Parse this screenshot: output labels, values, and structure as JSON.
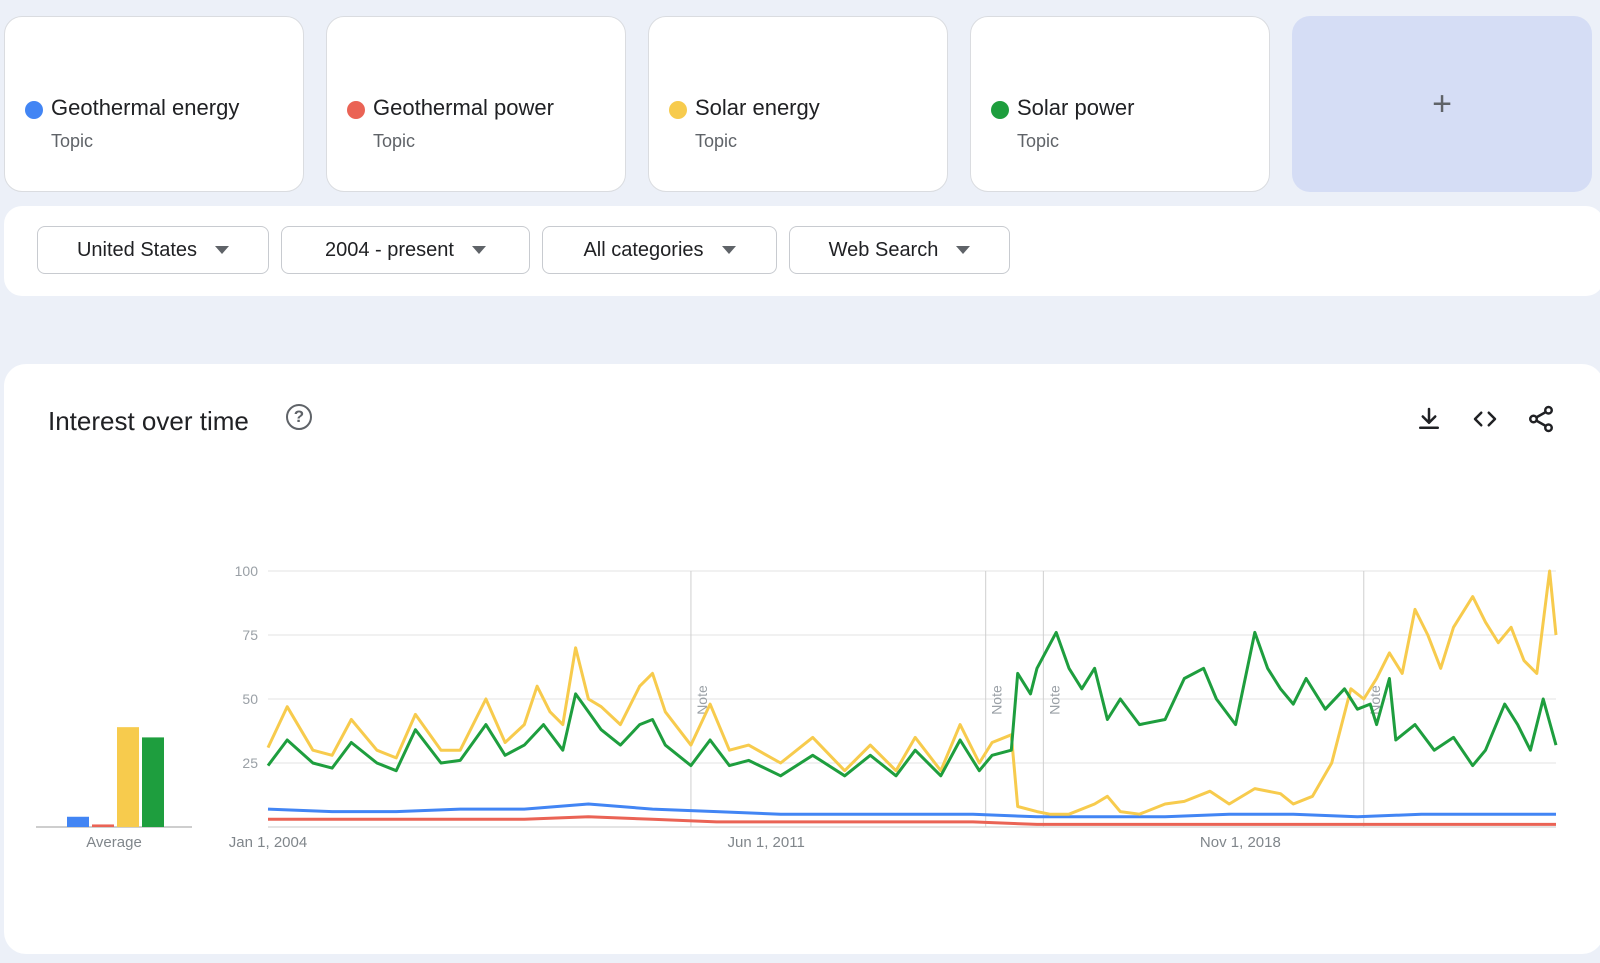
{
  "topics": [
    {
      "name": "Geothermal energy",
      "type": "Topic",
      "color": "#4285f4"
    },
    {
      "name": "Geothermal power",
      "type": "Topic",
      "color": "#ea6355"
    },
    {
      "name": "Solar energy",
      "type": "Topic",
      "color": "#f7cb4d"
    },
    {
      "name": "Solar power",
      "type": "Topic",
      "color": "#1e9e3e"
    }
  ],
  "add_label": "+",
  "filters": {
    "region": "United States",
    "time": "2004 - present",
    "category": "All categories",
    "search_type": "Web Search"
  },
  "panel": {
    "title": "Interest over time",
    "icons": [
      "help-icon",
      "download-icon",
      "embed-icon",
      "share-icon"
    ]
  },
  "chart_data": {
    "type": "line",
    "x_labels": [
      "Jan 1, 2004",
      "Jun 1, 2011",
      "Nov 1, 2018"
    ],
    "y_ticks": [
      25,
      50,
      75,
      100
    ],
    "ylim": [
      0,
      100
    ],
    "xlim": [
      2004.0,
      2024.1
    ],
    "grid": true,
    "notes": [
      {
        "x": 2010.6,
        "label": "Note"
      },
      {
        "x": 2015.2,
        "label": "Note"
      },
      {
        "x": 2016.1,
        "label": "Note"
      },
      {
        "x": 2021.1,
        "label": "Note"
      }
    ],
    "average": {
      "label": "Average",
      "values": [
        4,
        1,
        39,
        35
      ]
    },
    "series": [
      {
        "color": "#4285f4",
        "points": [
          [
            2004.0,
            7
          ],
          [
            2005.0,
            6
          ],
          [
            2006.0,
            6
          ],
          [
            2007.0,
            7
          ],
          [
            2008.0,
            7
          ],
          [
            2009.0,
            9
          ],
          [
            2010.0,
            7
          ],
          [
            2011.0,
            6
          ],
          [
            2012.0,
            5
          ],
          [
            2013.0,
            5
          ],
          [
            2014.0,
            5
          ],
          [
            2015.0,
            5
          ],
          [
            2016.0,
            4
          ],
          [
            2017.0,
            4
          ],
          [
            2018.0,
            4
          ],
          [
            2019.0,
            5
          ],
          [
            2020.0,
            5
          ],
          [
            2021.0,
            4
          ],
          [
            2022.0,
            5
          ],
          [
            2023.0,
            5
          ],
          [
            2024.1,
            5
          ]
        ]
      },
      {
        "color": "#ea6355",
        "points": [
          [
            2004.0,
            3
          ],
          [
            2005.0,
            3
          ],
          [
            2006.0,
            3
          ],
          [
            2007.0,
            3
          ],
          [
            2008.0,
            3
          ],
          [
            2009.0,
            4
          ],
          [
            2010.0,
            3
          ],
          [
            2011.0,
            2
          ],
          [
            2012.0,
            2
          ],
          [
            2013.0,
            2
          ],
          [
            2014.0,
            2
          ],
          [
            2015.0,
            2
          ],
          [
            2016.0,
            1
          ],
          [
            2017.0,
            1
          ],
          [
            2018.0,
            1
          ],
          [
            2019.0,
            1
          ],
          [
            2020.0,
            1
          ],
          [
            2021.0,
            1
          ],
          [
            2022.0,
            1
          ],
          [
            2023.0,
            1
          ],
          [
            2024.1,
            1
          ]
        ]
      },
      {
        "color": "#f7cb4d",
        "points": [
          [
            2004.0,
            31
          ],
          [
            2004.3,
            47
          ],
          [
            2004.7,
            30
          ],
          [
            2005.0,
            28
          ],
          [
            2005.3,
            42
          ],
          [
            2005.7,
            30
          ],
          [
            2006.0,
            27
          ],
          [
            2006.3,
            44
          ],
          [
            2006.7,
            30
          ],
          [
            2007.0,
            30
          ],
          [
            2007.4,
            50
          ],
          [
            2007.7,
            33
          ],
          [
            2008.0,
            40
          ],
          [
            2008.2,
            55
          ],
          [
            2008.4,
            45
          ],
          [
            2008.6,
            40
          ],
          [
            2008.8,
            70
          ],
          [
            2009.0,
            50
          ],
          [
            2009.2,
            47
          ],
          [
            2009.5,
            40
          ],
          [
            2009.8,
            55
          ],
          [
            2010.0,
            60
          ],
          [
            2010.2,
            45
          ],
          [
            2010.6,
            32
          ],
          [
            2010.9,
            48
          ],
          [
            2011.2,
            30
          ],
          [
            2011.5,
            32
          ],
          [
            2012.0,
            25
          ],
          [
            2012.5,
            35
          ],
          [
            2013.0,
            22
          ],
          [
            2013.4,
            32
          ],
          [
            2013.8,
            22
          ],
          [
            2014.1,
            35
          ],
          [
            2014.5,
            22
          ],
          [
            2014.8,
            40
          ],
          [
            2015.1,
            25
          ],
          [
            2015.3,
            33
          ],
          [
            2015.6,
            36
          ],
          [
            2015.7,
            8
          ],
          [
            2016.0,
            6
          ],
          [
            2016.2,
            5
          ],
          [
            2016.5,
            5
          ],
          [
            2016.9,
            9
          ],
          [
            2017.1,
            12
          ],
          [
            2017.3,
            6
          ],
          [
            2017.6,
            5
          ],
          [
            2018.0,
            9
          ],
          [
            2018.3,
            10
          ],
          [
            2018.7,
            14
          ],
          [
            2019.0,
            9
          ],
          [
            2019.4,
            15
          ],
          [
            2019.8,
            13
          ],
          [
            2020.0,
            9
          ],
          [
            2020.3,
            12
          ],
          [
            2020.6,
            25
          ],
          [
            2020.9,
            54
          ],
          [
            2021.1,
            50
          ],
          [
            2021.3,
            58
          ],
          [
            2021.5,
            68
          ],
          [
            2021.7,
            60
          ],
          [
            2021.9,
            85
          ],
          [
            2022.1,
            75
          ],
          [
            2022.3,
            62
          ],
          [
            2022.5,
            78
          ],
          [
            2022.8,
            90
          ],
          [
            2023.0,
            80
          ],
          [
            2023.2,
            72
          ],
          [
            2023.4,
            78
          ],
          [
            2023.6,
            65
          ],
          [
            2023.8,
            60
          ],
          [
            2024.0,
            100
          ],
          [
            2024.1,
            75
          ]
        ]
      },
      {
        "color": "#1e9e3e",
        "points": [
          [
            2004.0,
            24
          ],
          [
            2004.3,
            34
          ],
          [
            2004.7,
            25
          ],
          [
            2005.0,
            23
          ],
          [
            2005.3,
            33
          ],
          [
            2005.7,
            25
          ],
          [
            2006.0,
            22
          ],
          [
            2006.3,
            38
          ],
          [
            2006.7,
            25
          ],
          [
            2007.0,
            26
          ],
          [
            2007.4,
            40
          ],
          [
            2007.7,
            28
          ],
          [
            2008.0,
            32
          ],
          [
            2008.3,
            40
          ],
          [
            2008.6,
            30
          ],
          [
            2008.8,
            52
          ],
          [
            2009.0,
            45
          ],
          [
            2009.2,
            38
          ],
          [
            2009.5,
            32
          ],
          [
            2009.8,
            40
          ],
          [
            2010.0,
            42
          ],
          [
            2010.2,
            32
          ],
          [
            2010.6,
            24
          ],
          [
            2010.9,
            34
          ],
          [
            2011.2,
            24
          ],
          [
            2011.5,
            26
          ],
          [
            2012.0,
            20
          ],
          [
            2012.5,
            28
          ],
          [
            2013.0,
            20
          ],
          [
            2013.4,
            28
          ],
          [
            2013.8,
            20
          ],
          [
            2014.1,
            30
          ],
          [
            2014.5,
            20
          ],
          [
            2014.8,
            34
          ],
          [
            2015.1,
            22
          ],
          [
            2015.3,
            28
          ],
          [
            2015.6,
            30
          ],
          [
            2015.7,
            60
          ],
          [
            2015.9,
            52
          ],
          [
            2016.0,
            62
          ],
          [
            2016.3,
            76
          ],
          [
            2016.5,
            62
          ],
          [
            2016.7,
            54
          ],
          [
            2016.9,
            62
          ],
          [
            2017.1,
            42
          ],
          [
            2017.3,
            50
          ],
          [
            2017.6,
            40
          ],
          [
            2018.0,
            42
          ],
          [
            2018.3,
            58
          ],
          [
            2018.6,
            62
          ],
          [
            2018.8,
            50
          ],
          [
            2019.1,
            40
          ],
          [
            2019.4,
            76
          ],
          [
            2019.6,
            62
          ],
          [
            2019.8,
            54
          ],
          [
            2020.0,
            48
          ],
          [
            2020.2,
            58
          ],
          [
            2020.5,
            46
          ],
          [
            2020.8,
            54
          ],
          [
            2021.0,
            46
          ],
          [
            2021.2,
            48
          ],
          [
            2021.3,
            40
          ],
          [
            2021.5,
            58
          ],
          [
            2021.6,
            34
          ],
          [
            2021.9,
            40
          ],
          [
            2022.2,
            30
          ],
          [
            2022.5,
            35
          ],
          [
            2022.8,
            24
          ],
          [
            2023.0,
            30
          ],
          [
            2023.3,
            48
          ],
          [
            2023.5,
            40
          ],
          [
            2023.7,
            30
          ],
          [
            2023.9,
            50
          ],
          [
            2024.1,
            32
          ]
        ]
      }
    ]
  }
}
